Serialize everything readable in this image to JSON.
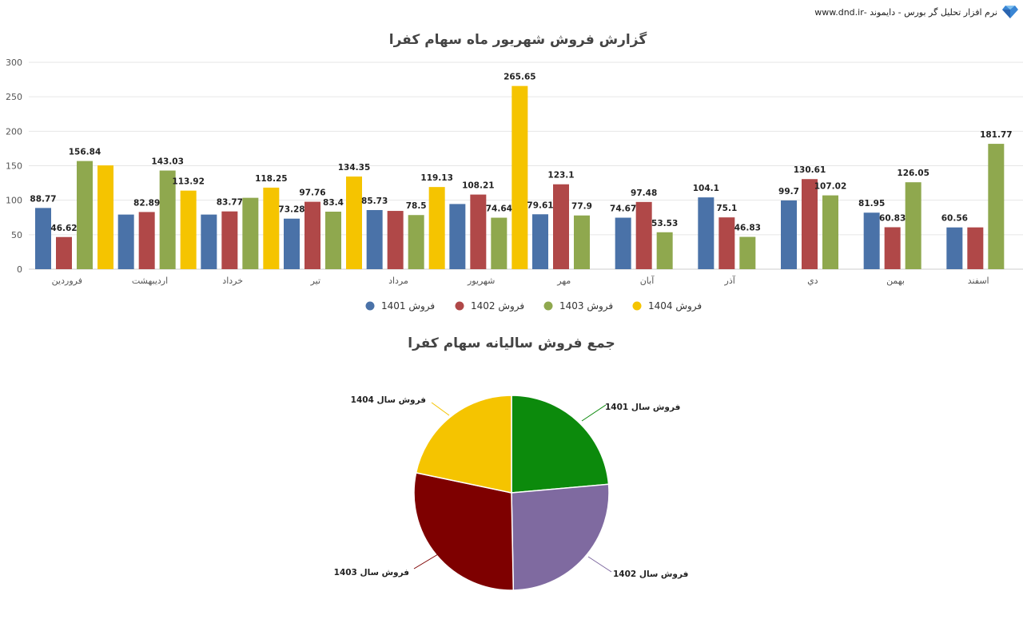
{
  "header": {
    "brand_text": "نرم افزار تحلیل گر بورس - دایموند -www.dnd.ir",
    "logo_icon": "diamond-icon"
  },
  "chart_data": [
    {
      "type": "bar",
      "title": "گزارش فروش شهریور ماه سهام کفرا",
      "categories": [
        "فروردین",
        "اردیبهشت",
        "خرداد",
        "تیر",
        "مرداد",
        "شهریور",
        "مهر",
        "آبان",
        "آذر",
        "دي",
        "بهمن",
        "اسفند"
      ],
      "ylim": [
        0,
        300
      ],
      "yticks": [
        0,
        50,
        100,
        150,
        200,
        250,
        300
      ],
      "grid": true,
      "legend_position": "bottom",
      "series": [
        {
          "name": "فروش 1401",
          "color": "#4a72a8",
          "values": [
            88.77,
            79.2,
            79.2,
            73.28,
            85.73,
            94.5,
            79.61,
            74.67,
            104.1,
            99.7,
            81.95,
            60.56
          ],
          "labels": [
            "88.77",
            "",
            "",
            "73.28",
            "85.73",
            "",
            "79.61",
            "74.67",
            "104.1",
            "99.7",
            "81.95",
            "60.56"
          ]
        },
        {
          "name": "فروش 1402",
          "color": "#b04848",
          "values": [
            46.62,
            82.89,
            83.77,
            97.76,
            84.5,
            108.21,
            123.1,
            97.48,
            75.1,
            130.61,
            60.83,
            60.6
          ],
          "labels": [
            "46.62",
            "82.89",
            "83.77",
            "97.76",
            "",
            "108.21",
            "123.1",
            "97.48",
            "75.1",
            "130.61",
            "60.83",
            ""
          ]
        },
        {
          "name": "فروش 1403",
          "color": "#8fa84e",
          "values": [
            156.84,
            143.03,
            103.5,
            83.4,
            78.5,
            74.64,
            77.9,
            53.53,
            46.83,
            107.02,
            126.05,
            181.77
          ],
          "labels": [
            "156.84",
            "143.03",
            "",
            "83.4",
            "78.5",
            "74.64",
            "77.9",
            "53.53",
            "46.83",
            "107.02",
            "126.05",
            "181.77"
          ]
        },
        {
          "name": "فروش 1404",
          "color": "#f5c400",
          "values": [
            150.5,
            113.92,
            118.25,
            134.35,
            119.13,
            265.65,
            null,
            null,
            null,
            null,
            null,
            null
          ],
          "labels": [
            "",
            "113.92",
            "118.25",
            "134.35",
            "119.13",
            "265.65",
            "",
            "",
            "",
            "",
            "",
            ""
          ]
        }
      ]
    },
    {
      "type": "pie",
      "title": "جمع فروش سالیانه سهام کفرا",
      "slices": [
        {
          "label": "فروش سال 1401",
          "value": 23.6,
          "color": "#0c8a0c"
        },
        {
          "label": "فروش سال 1402",
          "value": 26.1,
          "color": "#7f6aa0"
        },
        {
          "label": "فروش سال 1403",
          "value": 28.6,
          "color": "#7e0000"
        },
        {
          "label": "فروش سال 1404",
          "value": 21.7,
          "color": "#f5c400"
        }
      ]
    }
  ]
}
